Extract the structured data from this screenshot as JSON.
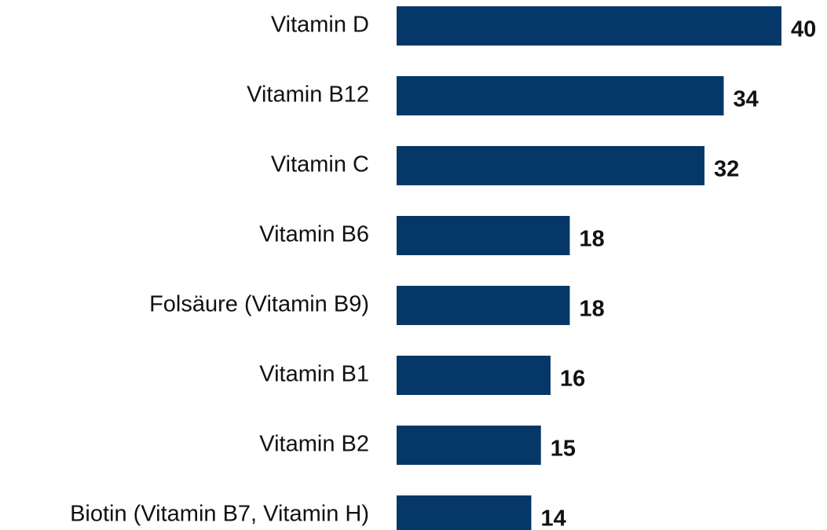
{
  "chart_data": {
    "type": "bar",
    "orientation": "horizontal",
    "categories": [
      "Vitamin D",
      "Vitamin B12",
      "Vitamin C",
      "Vitamin B6",
      "Folsäure (Vitamin B9)",
      "Vitamin B1",
      "Vitamin B2",
      "Biotin (Vitamin B7, Vitamin H)"
    ],
    "values": [
      40,
      34,
      32,
      18,
      18,
      16,
      15,
      14
    ],
    "color": "#053868"
  }
}
